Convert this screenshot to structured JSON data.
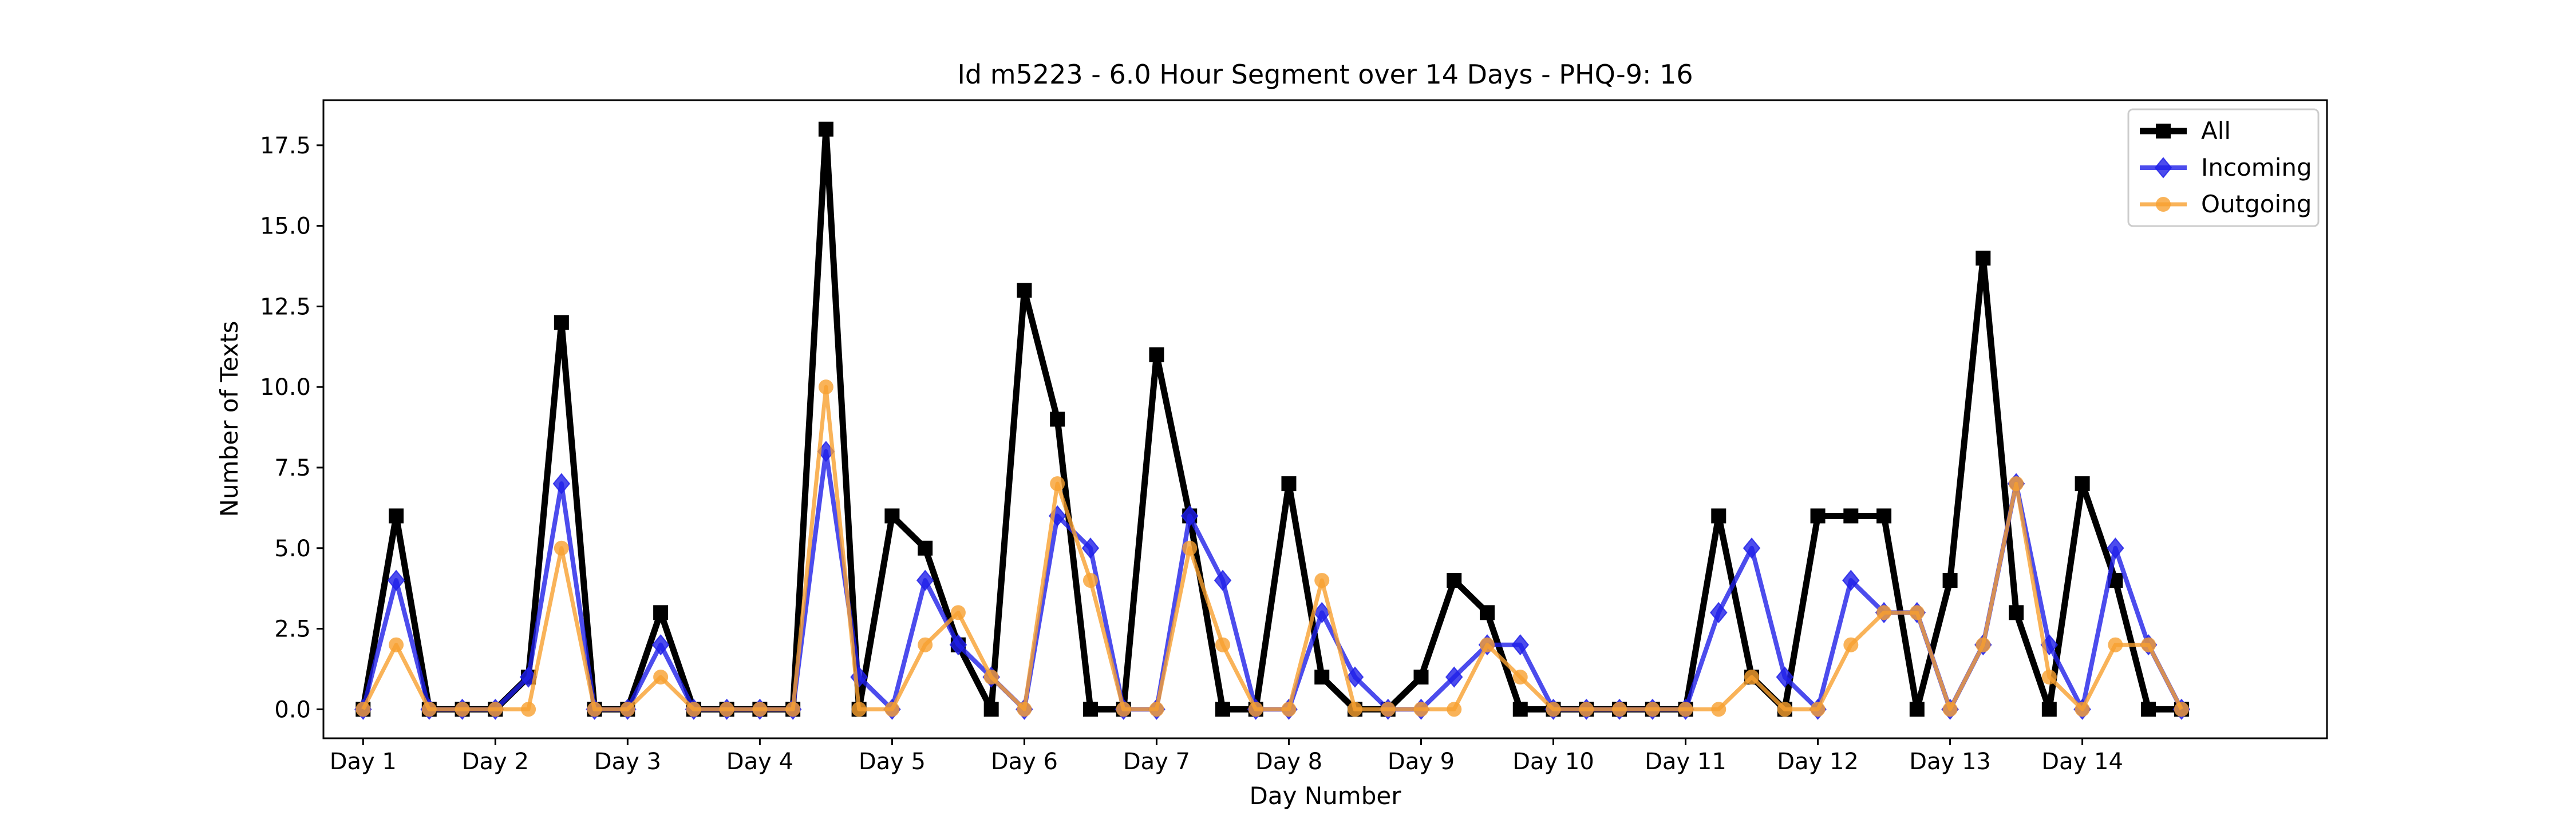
{
  "chart_data": {
    "type": "line",
    "title": "Id m5223 - 6.0 Hour Segment over 14 Days - PHQ-9: 16",
    "xlabel": "Day Number",
    "ylabel": "Number of Texts",
    "xlim": [
      -0.3,
      14.85
    ],
    "ylim": [
      -0.9,
      18.9
    ],
    "grid": false,
    "legend_position": "top-right",
    "x_ticks": [
      0,
      1,
      2,
      3,
      4,
      5,
      6,
      7,
      8,
      9,
      10,
      11,
      12,
      13
    ],
    "x_tick_labels": [
      "Day 1",
      "Day 2",
      "Day 3",
      "Day 4",
      "Day 5",
      "Day 6",
      "Day 7",
      "Day 8",
      "Day 9",
      "Day 10",
      "Day 11",
      "Day 12",
      "Day 13",
      "Day 14"
    ],
    "y_ticks": [
      0,
      2.5,
      5,
      7.5,
      10,
      12.5,
      15,
      17.5
    ],
    "y_tick_labels": [
      "0.0",
      "2.5",
      "5.0",
      "7.5",
      "10.0",
      "12.5",
      "15.0",
      "17.5"
    ],
    "x": [
      0,
      0.25,
      0.5,
      0.75,
      1,
      1.25,
      1.5,
      1.75,
      2,
      2.25,
      2.5,
      2.75,
      3,
      3.25,
      3.5,
      3.75,
      4,
      4.25,
      4.5,
      4.75,
      5,
      5.25,
      5.5,
      5.75,
      6,
      6.25,
      6.5,
      6.75,
      7,
      7.25,
      7.5,
      7.75,
      8,
      8.25,
      8.5,
      8.75,
      9,
      9.25,
      9.5,
      9.75,
      10,
      10.25,
      10.5,
      10.75,
      11,
      11.25,
      11.5,
      11.75,
      12,
      12.25,
      12.5,
      12.75,
      13,
      13.25,
      13.5,
      13.75
    ],
    "series": [
      {
        "name": "All",
        "color": "#000000",
        "marker": "square",
        "values": [
          0,
          6,
          0,
          0,
          0,
          1,
          12,
          0,
          0,
          3,
          0,
          0,
          0,
          0,
          18,
          0,
          6,
          5,
          2,
          0,
          13,
          9,
          0,
          0,
          11,
          6,
          0,
          0,
          7,
          1,
          0,
          0,
          1,
          4,
          3,
          0,
          0,
          0,
          0,
          0,
          0,
          6,
          1,
          0,
          6,
          6,
          6,
          0,
          4,
          14,
          3,
          0,
          7,
          4,
          0,
          0
        ]
      },
      {
        "name": "Incoming",
        "color": "#1f1fe8",
        "marker": "diamond",
        "values": [
          0,
          4,
          0,
          0,
          0,
          1,
          7,
          0,
          0,
          2,
          0,
          0,
          0,
          0,
          8,
          1,
          0,
          4,
          2,
          1,
          0,
          6,
          5,
          0,
          0,
          6,
          4,
          0,
          0,
          3,
          1,
          0,
          0,
          1,
          2,
          2,
          0,
          0,
          0,
          0,
          0,
          3,
          5,
          1,
          0,
          4,
          3,
          3,
          0,
          2,
          7,
          2,
          0,
          5,
          2,
          0
        ]
      },
      {
        "name": "Outgoing",
        "color": "#f7a030",
        "marker": "circle",
        "values": [
          0,
          2,
          0,
          0,
          0,
          0,
          5,
          0,
          0,
          1,
          0,
          0,
          0,
          0,
          10,
          0,
          0,
          2,
          3,
          1,
          0,
          7,
          4,
          0,
          0,
          5,
          2,
          0,
          0,
          4,
          0,
          0,
          0,
          0,
          2,
          1,
          0,
          0,
          0,
          0,
          0,
          0,
          1,
          0,
          0,
          2,
          3,
          3,
          0,
          2,
          7,
          1,
          0,
          2,
          2,
          0
        ]
      }
    ]
  }
}
